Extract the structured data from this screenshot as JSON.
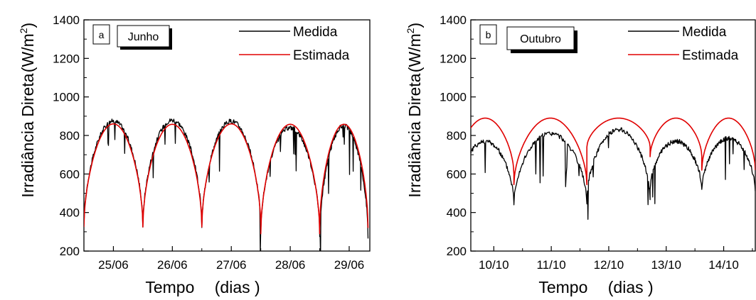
{
  "colors": {
    "measured": "#000000",
    "estimated": "#e00000"
  },
  "chart_data": [
    {
      "type": "line",
      "panel_letter": "a",
      "panel_label": "Junho",
      "ylabel_main": "Irradiância Direta",
      "ylabel_unit": "(W/m",
      "ylabel_sup": "2",
      "ylabel_close": ")",
      "xlabel_main": "Tempo",
      "xlabel_unit": "(dias )",
      "xlim": [
        24.5,
        29.35
      ],
      "ylim": [
        200,
        1400
      ],
      "yticks": [
        200,
        400,
        600,
        800,
        1000,
        1200,
        1400
      ],
      "xtick_values": [
        25,
        26,
        27,
        28,
        29
      ],
      "xtick_labels": [
        "25/06",
        "26/06",
        "27/06",
        "28/06",
        "29/06"
      ],
      "sunrise_times": [
        24.5,
        25.5,
        26.5,
        27.5,
        28.5
      ],
      "sunset_times": [
        25.5,
        26.5,
        27.5,
        28.5,
        29.32
      ],
      "legend": "top-right",
      "series": [
        {
          "name": "Medida",
          "daily_peak": [
            875,
            880,
            875,
            840,
            850
          ],
          "daily_min": [
            330,
            330,
            320,
            300,
            270
          ]
        },
        {
          "name": "Estimada",
          "daily_peak": [
            860,
            858,
            860,
            858,
            858
          ],
          "daily_min": [
            325,
            325,
            325,
            290,
            320
          ]
        }
      ]
    },
    {
      "type": "line",
      "panel_letter": "b",
      "panel_label": "Outubro",
      "ylabel_main": "Irradiância Direta",
      "ylabel_unit": "(W/m",
      "ylabel_sup": "2",
      "ylabel_close": ")",
      "xlabel_main": "Tempo",
      "xlabel_unit": "(dias )",
      "xlim": [
        9.6,
        14.55
      ],
      "ylim": [
        200,
        1400
      ],
      "yticks": [
        200,
        400,
        600,
        800,
        1000,
        1200,
        1400
      ],
      "xtick_values": [
        10,
        11,
        12,
        13,
        14
      ],
      "xtick_labels": [
        "10/10",
        "11/10",
        "12/10",
        "13/10",
        "14/10"
      ],
      "sunrise_times": [
        9.35,
        10.35,
        11.62,
        12.72,
        13.62
      ],
      "sunset_times": [
        10.35,
        11.62,
        12.72,
        13.62,
        14.55
      ],
      "legend": "top-right",
      "series": [
        {
          "name": "Medida",
          "daily_peak": [
            770,
            810,
            830,
            770,
            785
          ],
          "daily_min": [
            450,
            450,
            470,
            520,
            510
          ]
        },
        {
          "name": "Estimada",
          "daily_peak": [
            890,
            890,
            890,
            890,
            890
          ],
          "daily_min": [
            600,
            545,
            740,
            690,
            620
          ]
        }
      ]
    }
  ]
}
